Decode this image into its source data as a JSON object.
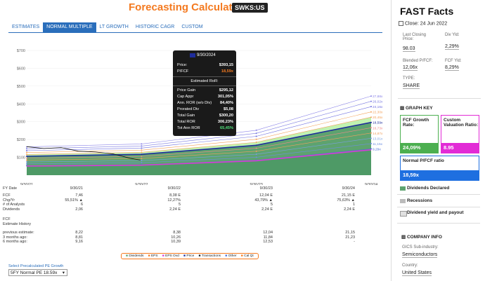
{
  "header": {
    "title": "Forecasting Calculators",
    "ticker": "SWKS:US"
  },
  "tabs": [
    {
      "label": "ESTIMATES",
      "active": false
    },
    {
      "label": "NORMAL MULTIPLE",
      "active": true
    },
    {
      "label": "LT GROWTH",
      "active": false
    },
    {
      "label": "HISTORIC CAGR",
      "active": false
    },
    {
      "label": "CUSTOM",
      "active": false
    }
  ],
  "chart_data": {
    "type": "area",
    "y_ticks": [
      "$700",
      "$600",
      "$500",
      "$400",
      "$300",
      "$200",
      "$100"
    ],
    "x_ticks": [
      "9/30/21",
      "9/30/22",
      "9/30/23",
      "9/30/24"
    ],
    "ylim": [
      0,
      700
    ],
    "right_labels": [
      "27,88x",
      "26,02x",
      "24,16x",
      "22,30x",
      "20,45x",
      "18,59x",
      "16,73x",
      "14,87x",
      "13,01x",
      "11,15x",
      "9,29x"
    ],
    "price_history": [
      [
        0.0,
        160
      ],
      [
        0.05,
        150
      ],
      [
        0.1,
        155
      ],
      [
        0.15,
        135
      ],
      [
        0.2,
        130
      ],
      [
        0.25,
        120
      ],
      [
        0.3,
        95
      ],
      [
        0.33,
        85
      ]
    ],
    "fcf_fair_value": [
      [
        0,
        106
      ],
      [
        1,
        117
      ],
      [
        2,
        168
      ],
      [
        3,
        296
      ]
    ]
  },
  "tooltip": {
    "date": "9/30/2024",
    "price_label": "Price:",
    "price": "$393,15",
    "pfcf_label": "P/FCF",
    "pfcf": "18,59x",
    "section": "Estimated RoR:",
    "rows": [
      {
        "k": "Price Gain",
        "v": "$295,12"
      },
      {
        "k": "Cap Appr",
        "v": "301,05%"
      },
      {
        "k": "Ann. ROR (w/o Div)",
        "v": "84,40%"
      },
      {
        "k": "Prorated Div",
        "v": "$5,08"
      },
      {
        "k": "Total Gain",
        "v": "$300,20"
      },
      {
        "k": "Total ROR",
        "v": "306,23%"
      },
      {
        "k": "Tot Ann ROR",
        "v": "65,45%"
      }
    ]
  },
  "table": {
    "fy_label": "FY Date",
    "cols": [
      "9/30/21",
      "9/30/22",
      "9/30/23",
      "9/30/24"
    ],
    "rows": [
      {
        "label": "FCF",
        "vals": [
          "7,46",
          "8,38 E",
          "12,04 E",
          "21,15 E"
        ]
      },
      {
        "label": "Chg/Yr",
        "vals": [
          "55,51% ▲",
          "12,27%",
          "43,79% ▲",
          "75,63% ▲"
        ]
      },
      {
        "label": "# of Analysts",
        "vals": [
          "6",
          "5",
          "5",
          "1"
        ]
      },
      {
        "label": "Dividends",
        "vals": [
          "2,06",
          "2,24 E",
          "2,24 E",
          "2,24 E"
        ]
      }
    ],
    "history_title": "FCF",
    "history_sub": "Estimate History",
    "history_rows": [
      {
        "label": "previous estimate:",
        "vals": [
          "8,22",
          "8,38",
          "12,04",
          "21,15"
        ]
      },
      {
        "label": "3 months ago:",
        "vals": [
          "8,81",
          "10,26",
          "11,84",
          "21,23"
        ]
      },
      {
        "label": "6 months ago:",
        "vals": [
          "9,16",
          "10,39",
          "12,53",
          "-"
        ]
      }
    ]
  },
  "legend": [
    "Dividends",
    "EPS",
    "EPS Ovd",
    "Price",
    "Transactions",
    "Other",
    "Cal Qt"
  ],
  "select": {
    "label": "Select Precalculated PE Growth",
    "value": "5FY Normal PE 18.59x"
  },
  "side": {
    "title": "FAST Facts",
    "close": "Close: 24 Jun 2022",
    "facts": [
      {
        "label": "Last Closing Price:",
        "value": "98.03"
      },
      {
        "label": "Div Yld:",
        "value": "2,29%"
      },
      {
        "label": "Blended P/FCF:",
        "value": "12,06x"
      },
      {
        "label": "FCF Yld:",
        "value": "8,29%"
      },
      {
        "label": "TYPE:",
        "value": "SHARE"
      }
    ],
    "graph_key": "GRAPH KEY",
    "fcf_growth_label": "FCF Growth Rate:",
    "fcf_growth_value": "24,09%",
    "custom_label": "Custom Valuation Ratio:",
    "custom_value": "8.95",
    "normal_label": "Normal P/FCF ratio",
    "normal_value": "18,59x",
    "keys": [
      "Dividends Declared",
      "Recessions",
      "Dividend yield and payout"
    ],
    "company_info": "COMPANY INFO",
    "industry_label": "GICS Sub-industry:",
    "industry_value": "Semiconductors",
    "country_label": "Country:",
    "country_value": "United States"
  },
  "colors": {
    "accent": "#f47a20",
    "tab_blue": "#2a6ebb",
    "green_area": "#5da36f",
    "light_green": "#b6f0a3",
    "magenta": "#d63dd6",
    "navy": "#1f2d9c",
    "custom_border": "#e22bd6",
    "green_box": "#4caf50"
  }
}
